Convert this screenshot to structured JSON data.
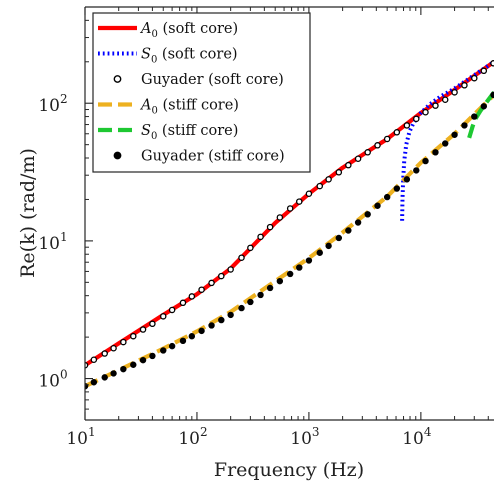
{
  "chart_data": {
    "type": "line",
    "xlabel": "Frequency (Hz)",
    "ylabel": "Re(k) (rad/m)",
    "x_scale": "log",
    "y_scale": "log",
    "xlim": [
      10,
      45000
    ],
    "ylim": [
      0.5,
      500
    ],
    "x_ticks": [
      {
        "value": 10,
        "base": "10",
        "exp": "1"
      },
      {
        "value": 100,
        "base": "10",
        "exp": "2"
      },
      {
        "value": 1000,
        "base": "10",
        "exp": "3"
      },
      {
        "value": 10000,
        "base": "10",
        "exp": "4"
      }
    ],
    "y_ticks": [
      {
        "value": 1,
        "base": "10",
        "exp": "0"
      },
      {
        "value": 10,
        "base": "10",
        "exp": "1"
      },
      {
        "value": 100,
        "base": "10",
        "exp": "2"
      }
    ],
    "grid": false,
    "legend_position": "top-left",
    "series": [
      {
        "name": "A0 (soft core)",
        "legend_main": "A",
        "legend_sub": "0",
        "legend_rest": " (soft core)",
        "style": "solid",
        "color": "#ff0000",
        "x": [
          10,
          20,
          50,
          100,
          200,
          500,
          1000,
          2000,
          5000,
          10000,
          20000,
          45000
        ],
        "y": [
          1.25,
          1.8,
          2.9,
          4.1,
          6.3,
          13.5,
          22,
          34,
          55,
          85,
          125,
          200
        ]
      },
      {
        "name": "S0 (soft core)",
        "legend_main": "S",
        "legend_sub": "0",
        "legend_rest": " (soft core)",
        "style": "dotted",
        "color": "#0000ff",
        "x": [
          6800,
          6850,
          6950,
          7100,
          7400,
          7900,
          8600,
          10000,
          12000,
          15000,
          20000,
          30000,
          45000
        ],
        "y": [
          14,
          20,
          28,
          38,
          50,
          62,
          72,
          85,
          98,
          112,
          128,
          160,
          200
        ]
      },
      {
        "name": "Guyader (soft core)",
        "legend_main": "Guyader (soft core)",
        "legend_sub": "",
        "legend_rest": "",
        "style": "open-circle",
        "color": "#000000",
        "x": [
          10,
          12,
          15,
          18,
          22,
          27,
          33,
          40,
          50,
          60,
          75,
          90,
          110,
          135,
          165,
          200,
          250,
          300,
          370,
          450,
          550,
          680,
          820,
          1000,
          1250,
          1500,
          1850,
          2250,
          2750,
          3350,
          4100,
          5000,
          6100,
          7500,
          9100,
          11000,
          13500,
          16500,
          20000,
          24500,
          30000,
          36500,
          44500
        ],
        "y": [
          1.25,
          1.37,
          1.52,
          1.66,
          1.84,
          2.03,
          2.27,
          2.5,
          2.83,
          3.15,
          3.55,
          3.95,
          4.42,
          4.95,
          5.55,
          6.2,
          7.55,
          8.9,
          10.7,
          12.6,
          14.8,
          17.2,
          19.3,
          22,
          25,
          28,
          31.5,
          35.5,
          39.5,
          44,
          49.5,
          55,
          61.5,
          69,
          77,
          86,
          96,
          106,
          120,
          135,
          152,
          172,
          195
        ]
      },
      {
        "name": "A0 (stiff core)",
        "legend_main": "A",
        "legend_sub": "0",
        "legend_rest": " (stiff core)",
        "style": "dashed",
        "color": "#edb120",
        "x": [
          10,
          20,
          50,
          100,
          200,
          500,
          1000,
          2000,
          5000,
          10000,
          20000,
          45000
        ],
        "y": [
          0.88,
          1.15,
          1.65,
          2.2,
          3.05,
          5.1,
          7.5,
          11.5,
          21,
          37,
          60,
          115
        ]
      },
      {
        "name": "S0 (stiff core)",
        "legend_main": "S",
        "legend_sub": "0",
        "legend_rest": " (stiff core)",
        "style": "dashed",
        "color": "#1ec832",
        "x": [
          27000,
          29000,
          31000,
          34000,
          38000,
          45000
        ],
        "y": [
          56,
          68,
          78,
          88,
          100,
          120
        ]
      },
      {
        "name": "Guyader (stiff core)",
        "legend_main": "Guyader (stiff core)",
        "legend_sub": "",
        "legend_rest": "",
        "style": "filled-circle",
        "color": "#000000",
        "x": [
          10,
          12,
          15,
          18,
          22,
          27,
          33,
          40,
          50,
          60,
          75,
          90,
          110,
          135,
          165,
          200,
          250,
          300,
          370,
          450,
          550,
          680,
          820,
          1000,
          1250,
          1500,
          1850,
          2250,
          2750,
          3350,
          4100,
          5000,
          6100,
          7500,
          9100,
          11000,
          13500,
          16500,
          20000,
          24500,
          30000,
          36500,
          44500
        ],
        "y": [
          0.88,
          0.94,
          1.02,
          1.09,
          1.17,
          1.26,
          1.36,
          1.46,
          1.6,
          1.72,
          1.88,
          2.03,
          2.22,
          2.43,
          2.66,
          2.9,
          3.25,
          3.6,
          4.05,
          4.55,
          5.1,
          5.75,
          6.4,
          7.2,
          8.2,
          9.2,
          10.5,
          11.9,
          13.6,
          15.6,
          18,
          20.8,
          24,
          28,
          32.5,
          38,
          44,
          51,
          59,
          69,
          80,
          95,
          115
        ]
      }
    ]
  }
}
